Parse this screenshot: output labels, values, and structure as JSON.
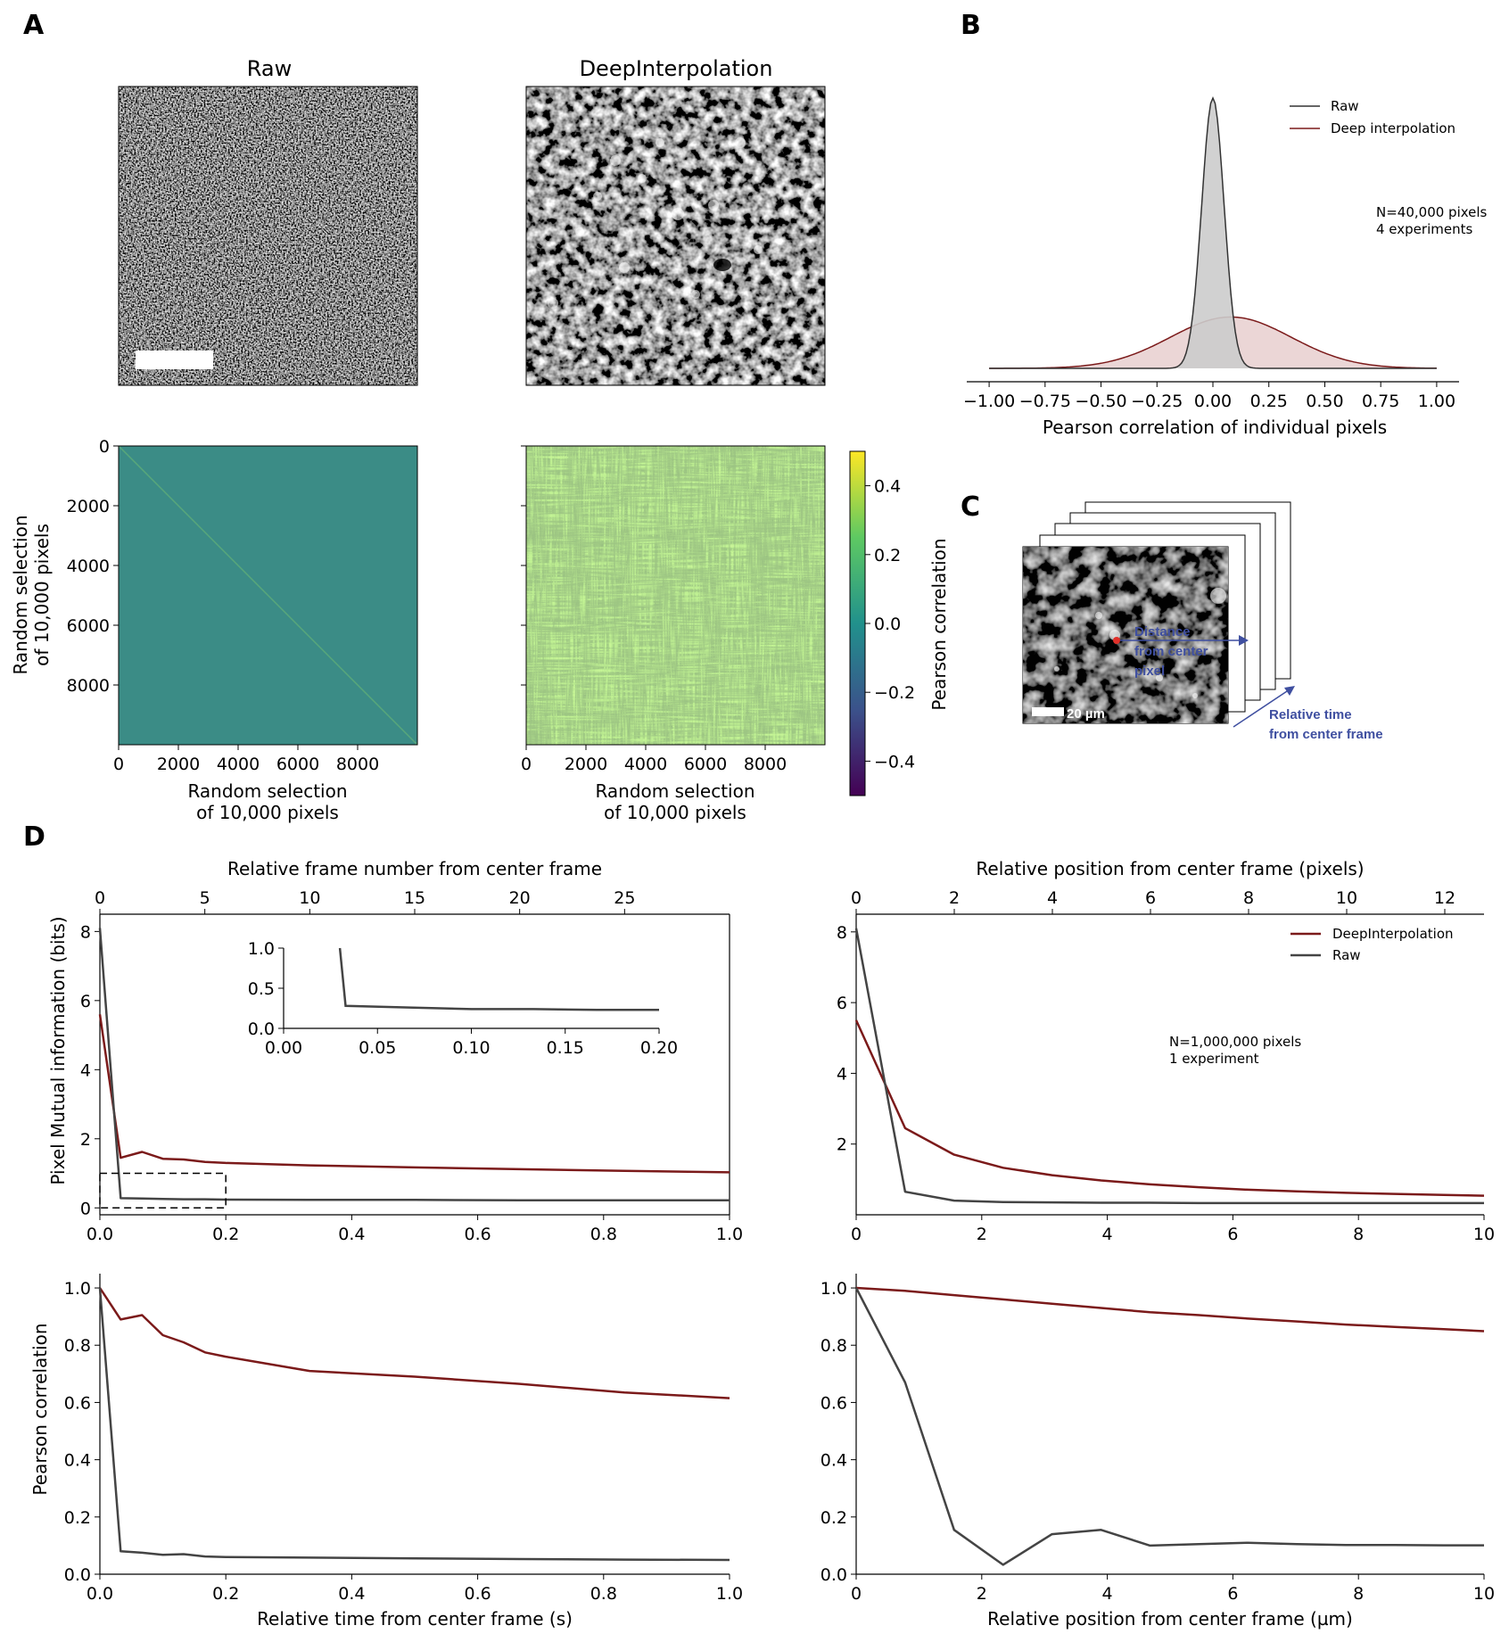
{
  "panels": {
    "A": {
      "letter": "A",
      "raw_title": "Raw",
      "deep_title": "DeepInterpolation",
      "matrix_x_label": [
        "Random selection",
        "of 10,000 pixels"
      ],
      "matrix_y_label": [
        "Random selection",
        "of 10,000 pixels"
      ],
      "matrix_x_ticks": [
        "0",
        "2000",
        "4000",
        "6000",
        "8000"
      ],
      "matrix_y_ticks": [
        "0",
        "2000",
        "4000",
        "6000",
        "8000"
      ],
      "colorbar": {
        "label": "Pearson correlation",
        "ticks": [
          "0.4",
          "0.2",
          "0.0",
          "−0.2",
          "−0.4"
        ],
        "range": [
          -0.5,
          0.5
        ],
        "colormap": [
          "#440154",
          "#3b528b",
          "#21918c",
          "#5ec962",
          "#fde725"
        ]
      },
      "colors": {
        "raw_matrix": "#3b8c86",
        "deep_matrix_a": "#79b35a",
        "deep_matrix_b": "#5c8f7e"
      }
    },
    "B": {
      "letter": "B",
      "legend": [
        "Raw",
        "Deep interpolation"
      ],
      "note": [
        "N=40,000 pixels",
        "4 experiments"
      ],
      "x_label": "Pearson correlation of individual pixels",
      "x_ticks": [
        "−1.00",
        "−0.75",
        "−0.50",
        "−0.25",
        "0.00",
        "0.25",
        "0.50",
        "0.75",
        "1.00"
      ]
    },
    "C": {
      "letter": "C",
      "annotation_distance": [
        "Distance",
        "from center",
        "pixel"
      ],
      "annotation_time": [
        "Relative time",
        "from center frame"
      ],
      "scale_label": "20 µm"
    },
    "D": {
      "letter": "D",
      "top_left": {
        "top_axis_label": "Relative frame number from center frame",
        "top_ticks": [
          "0",
          "5",
          "10",
          "15",
          "20",
          "25"
        ],
        "y_label": "Pixel Mutual information (bits)",
        "y_ticks": [
          "0",
          "2",
          "4",
          "6",
          "8"
        ],
        "x_ticks": [
          "0.0",
          "0.2",
          "0.4",
          "0.6",
          "0.8",
          "1.0"
        ],
        "inset_y_ticks": [
          "0.0",
          "0.5",
          "1.0"
        ],
        "inset_x_ticks": [
          "0.00",
          "0.05",
          "0.10",
          "0.15",
          "0.20"
        ]
      },
      "top_right": {
        "top_axis_label": "Relative position from center frame (pixels)",
        "top_ticks": [
          "0",
          "2",
          "4",
          "6",
          "8",
          "10",
          "12"
        ],
        "y_ticks": [
          "2",
          "4",
          "6",
          "8"
        ],
        "x_ticks": [
          "0",
          "2",
          "4",
          "6",
          "8",
          "10"
        ],
        "legend": [
          "DeepInterpolation",
          "Raw"
        ],
        "note": [
          "N=1,000,000 pixels",
          "1 experiment"
        ]
      },
      "bottom_left": {
        "y_label": "Pearson correlation",
        "y_ticks": [
          "0.0",
          "0.2",
          "0.4",
          "0.6",
          "0.8",
          "1.0"
        ],
        "x_ticks": [
          "0.0",
          "0.2",
          "0.4",
          "0.6",
          "0.8",
          "1.0"
        ],
        "x_label": "Relative time from center frame (s)"
      },
      "bottom_right": {
        "y_ticks": [
          "0.0",
          "0.2",
          "0.4",
          "0.6",
          "0.8",
          "1.0"
        ],
        "x_ticks": [
          "0",
          "2",
          "4",
          "6",
          "8",
          "10"
        ],
        "x_label": "Relative position from center frame (µm)"
      }
    }
  },
  "chart_data": [
    {
      "id": "B",
      "type": "area",
      "xlabel": "Pearson correlation of individual pixels",
      "xlim": [
        -1.0,
        1.0
      ],
      "series": [
        {
          "name": "Raw",
          "color": "#333333",
          "fill": "#cccccc",
          "distribution": "gaussian",
          "mean": 0.0,
          "sd": 0.05,
          "peak": 1.0
        },
        {
          "name": "Deep interpolation",
          "color": "#7b1a1a",
          "fill": "#e6cccc",
          "distribution": "gaussian",
          "mean": 0.08,
          "sd": 0.27,
          "peak": 0.19
        }
      ]
    },
    {
      "id": "D-top-left",
      "type": "line",
      "ylabel": "Pixel Mutual information (bits)",
      "xlim": [
        0,
        1.0
      ],
      "ylim": [
        -0.2,
        8.5
      ],
      "top_axis_label": "Relative frame number from center frame",
      "top_xlim": [
        0,
        30
      ],
      "series": [
        {
          "name": "DeepInterpolation",
          "color": "#7b1a1a",
          "x": [
            0,
            0.033,
            0.067,
            0.1,
            0.133,
            0.167,
            0.2,
            0.333,
            0.5,
            0.667,
            0.833,
            1.0
          ],
          "y": [
            5.6,
            1.45,
            1.62,
            1.42,
            1.4,
            1.33,
            1.3,
            1.23,
            1.17,
            1.12,
            1.07,
            1.03
          ]
        },
        {
          "name": "Raw",
          "color": "#444444",
          "x": [
            0,
            0.033,
            0.067,
            0.1,
            0.133,
            0.167,
            0.2,
            0.333,
            0.5,
            0.667,
            0.833,
            1.0
          ],
          "y": [
            8.1,
            0.28,
            0.27,
            0.26,
            0.25,
            0.25,
            0.24,
            0.23,
            0.23,
            0.22,
            0.22,
            0.22
          ]
        }
      ],
      "inset": {
        "xlim": [
          0,
          0.2
        ],
        "ylim": [
          0,
          1.0
        ],
        "series": [
          {
            "name": "Raw",
            "color": "#444444",
            "x": [
              0.03,
              0.033,
              0.067,
              0.1,
              0.133,
              0.167,
              0.2
            ],
            "y": [
              1.0,
              0.28,
              0.26,
              0.24,
              0.24,
              0.23,
              0.23
            ]
          }
        ]
      }
    },
    {
      "id": "D-top-right",
      "type": "line",
      "xlim": [
        0,
        10
      ],
      "ylim": [
        0,
        8.5
      ],
      "top_axis_label": "Relative position from center frame (pixels)",
      "top_xlim": [
        0,
        12.8
      ],
      "series": [
        {
          "name": "DeepInterpolation",
          "color": "#7b1a1a",
          "x": [
            0,
            0.78,
            1.56,
            2.34,
            3.12,
            3.9,
            4.68,
            5.46,
            6.24,
            7.02,
            7.8,
            8.58,
            9.36,
            10
          ],
          "y": [
            5.5,
            2.45,
            1.7,
            1.33,
            1.12,
            0.97,
            0.86,
            0.78,
            0.71,
            0.66,
            0.62,
            0.59,
            0.56,
            0.54
          ]
        },
        {
          "name": "Raw",
          "color": "#444444",
          "x": [
            0,
            0.78,
            1.56,
            2.34,
            3.12,
            3.9,
            4.68,
            5.46,
            6.24,
            7.02,
            7.8,
            8.58,
            9.36,
            10
          ],
          "y": [
            8.1,
            0.65,
            0.4,
            0.36,
            0.35,
            0.34,
            0.34,
            0.33,
            0.33,
            0.33,
            0.33,
            0.33,
            0.33,
            0.33
          ]
        }
      ]
    },
    {
      "id": "D-bottom-left",
      "type": "line",
      "xlabel": "Relative time from center frame (s)",
      "ylabel": "Pearson correlation",
      "xlim": [
        0,
        1.0
      ],
      "ylim": [
        0,
        1.05
      ],
      "series": [
        {
          "name": "DeepInterpolation",
          "color": "#7b1a1a",
          "x": [
            0,
            0.033,
            0.067,
            0.1,
            0.133,
            0.167,
            0.2,
            0.333,
            0.5,
            0.667,
            0.833,
            1.0
          ],
          "y": [
            1.0,
            0.89,
            0.905,
            0.835,
            0.81,
            0.775,
            0.76,
            0.71,
            0.69,
            0.665,
            0.635,
            0.615
          ]
        },
        {
          "name": "Raw",
          "color": "#444444",
          "x": [
            0,
            0.033,
            0.067,
            0.1,
            0.133,
            0.167,
            0.2,
            0.333,
            0.5,
            0.667,
            0.833,
            1.0
          ],
          "y": [
            1.0,
            0.08,
            0.075,
            0.068,
            0.07,
            0.062,
            0.06,
            0.058,
            0.055,
            0.053,
            0.051,
            0.05
          ]
        }
      ]
    },
    {
      "id": "D-bottom-right",
      "type": "line",
      "xlabel": "Relative position from center frame (µm)",
      "xlim": [
        0,
        10
      ],
      "ylim": [
        0,
        1.05
      ],
      "series": [
        {
          "name": "DeepInterpolation",
          "color": "#7b1a1a",
          "x": [
            0,
            0.78,
            1.56,
            2.34,
            3.12,
            3.9,
            4.68,
            5.46,
            6.24,
            7.02,
            7.8,
            8.58,
            9.36,
            10
          ],
          "y": [
            1.0,
            0.99,
            0.975,
            0.96,
            0.945,
            0.93,
            0.915,
            0.905,
            0.893,
            0.883,
            0.872,
            0.864,
            0.856,
            0.849
          ]
        },
        {
          "name": "Raw",
          "color": "#444444",
          "x": [
            0,
            0.78,
            1.56,
            2.34,
            3.12,
            3.9,
            4.68,
            5.46,
            6.24,
            7.02,
            7.8,
            8.58,
            9.36,
            10
          ],
          "y": [
            1.0,
            0.67,
            0.155,
            0.033,
            0.14,
            0.155,
            0.1,
            0.105,
            0.11,
            0.105,
            0.102,
            0.102,
            0.101,
            0.101
          ]
        }
      ]
    }
  ]
}
